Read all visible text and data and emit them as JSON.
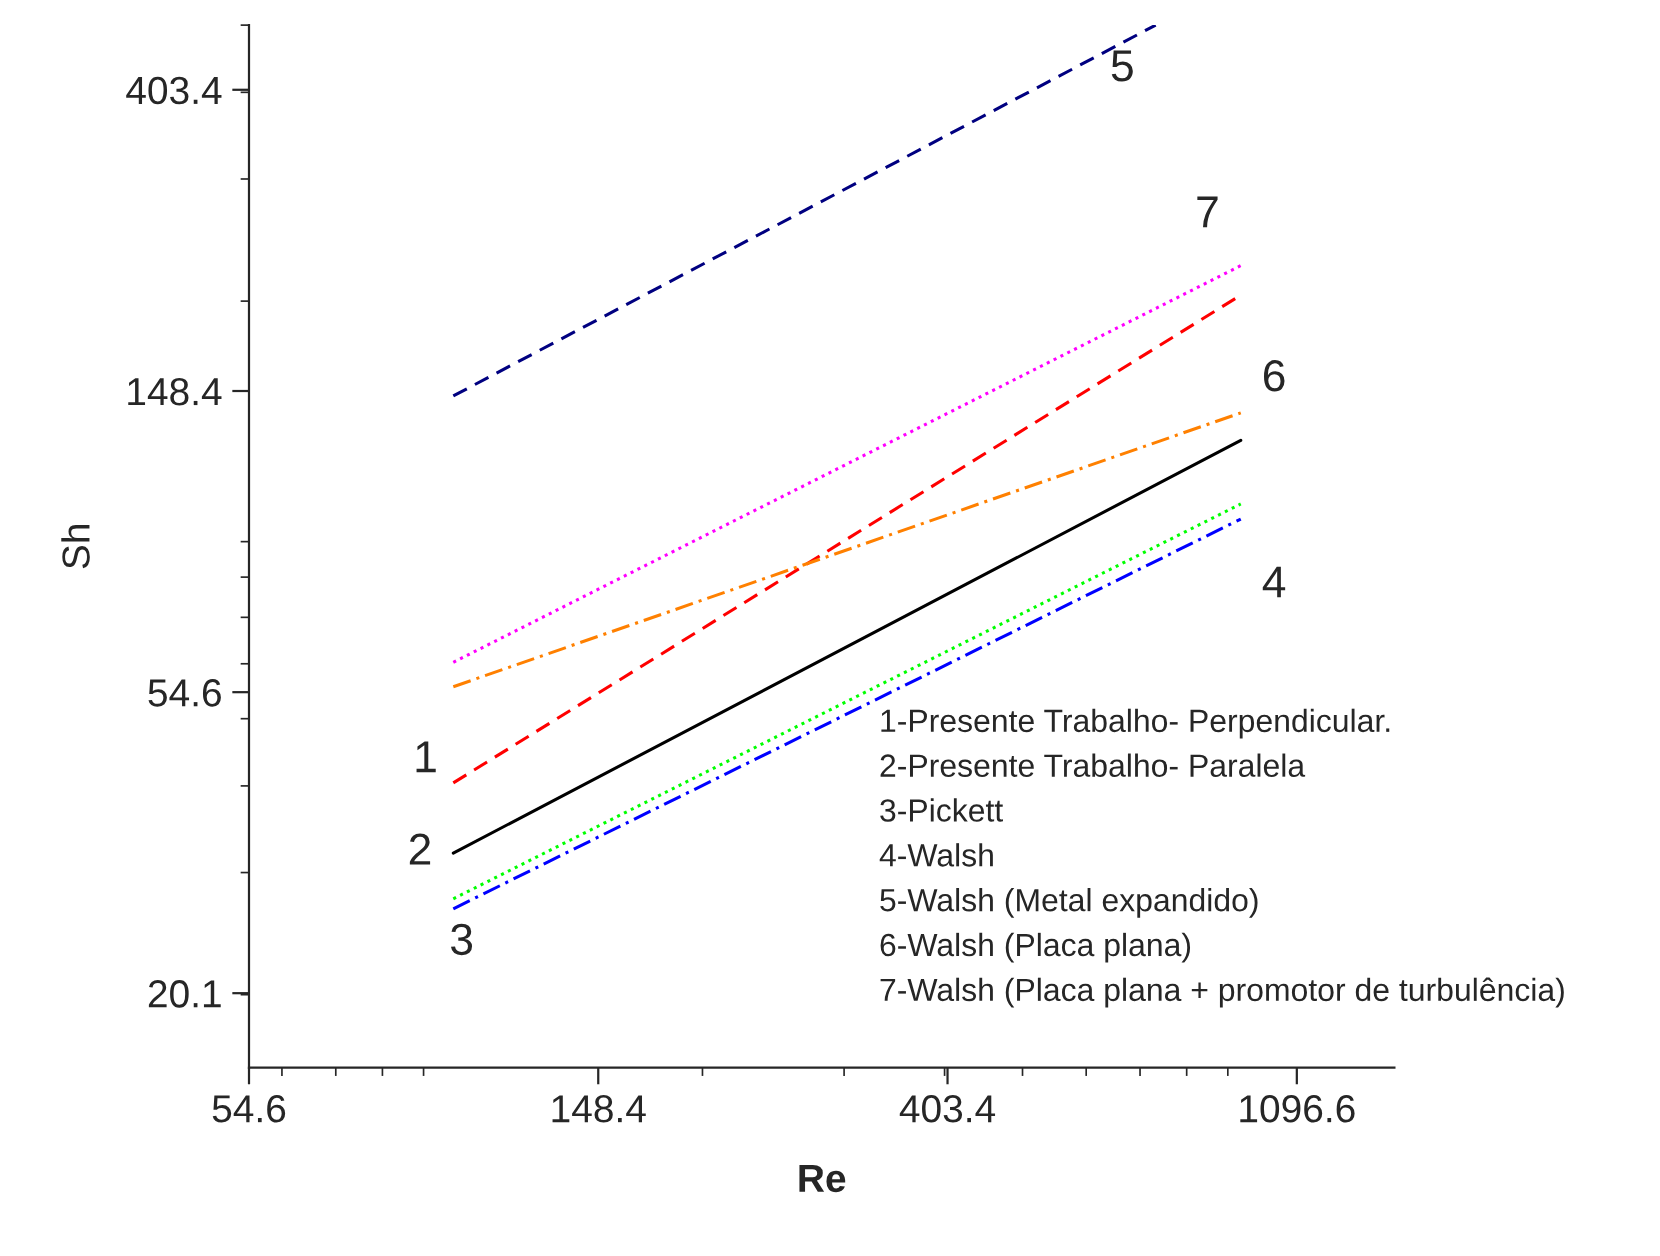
{
  "chart_data": {
    "type": "line",
    "xlabel": "Re",
    "ylabel": "Sh",
    "log": "xy",
    "grid": false,
    "legend": false,
    "xlim": [
      54.6,
      1450
    ],
    "ylim": [
      15.7,
      500
    ],
    "xticks": [
      {
        "value": 54.6,
        "label": "54.6"
      },
      {
        "value": 148.4,
        "label": "148.4"
      },
      {
        "value": 403.4,
        "label": "403.4"
      },
      {
        "value": 1096.6,
        "label": "1096.6"
      }
    ],
    "yticks": [
      {
        "value": 20.1,
        "label": "20.1"
      },
      {
        "value": 54.6,
        "label": "54.6"
      },
      {
        "value": 148.4,
        "label": "148.4"
      },
      {
        "value": 403.4,
        "label": "403.4"
      }
    ],
    "series": [
      {
        "color": "#ff0000",
        "line_style": "dashed",
        "x": [
          98,
          934
        ],
        "values": [
          40.4,
          204
        ]
      },
      {
        "color": "#000000",
        "line_style": "solid",
        "x": [
          98,
          934
        ],
        "values": [
          32.0,
          126
        ]
      },
      {
        "color": "#00ff00",
        "line_style": "dotted",
        "x": [
          98,
          934
        ],
        "values": [
          27.5,
          102
        ]
      },
      {
        "color": "#0000ff",
        "line_style": "dashdot",
        "x": [
          98,
          934
        ],
        "values": [
          26.6,
          97
        ]
      },
      {
        "color": "#000080",
        "line_style": "dashed",
        "x": [
          98,
          732
        ],
        "values": [
          146,
          500
        ]
      },
      {
        "color": "#ff8000",
        "line_style": "dashdot",
        "x": [
          98,
          934
        ],
        "values": [
          55.6,
          138
        ]
      },
      {
        "color": "#ff00ff",
        "line_style": "dotted",
        "x": [
          98,
          934
        ],
        "values": [
          60.3,
          225
        ]
      }
    ],
    "annotations": [
      "1",
      "2",
      "3",
      "4",
      "5",
      "6",
      "7",
      "1-Presente Trabalho- Perpendicular.",
      "2-Presente Trabalho- Paralela",
      "3-Pickett",
      "4-Walsh",
      "5-Walsh (Metal expandido)",
      "6-Walsh (Placa plana)",
      "7-Walsh (Placa plana + promotor de turbulência)"
    ]
  }
}
